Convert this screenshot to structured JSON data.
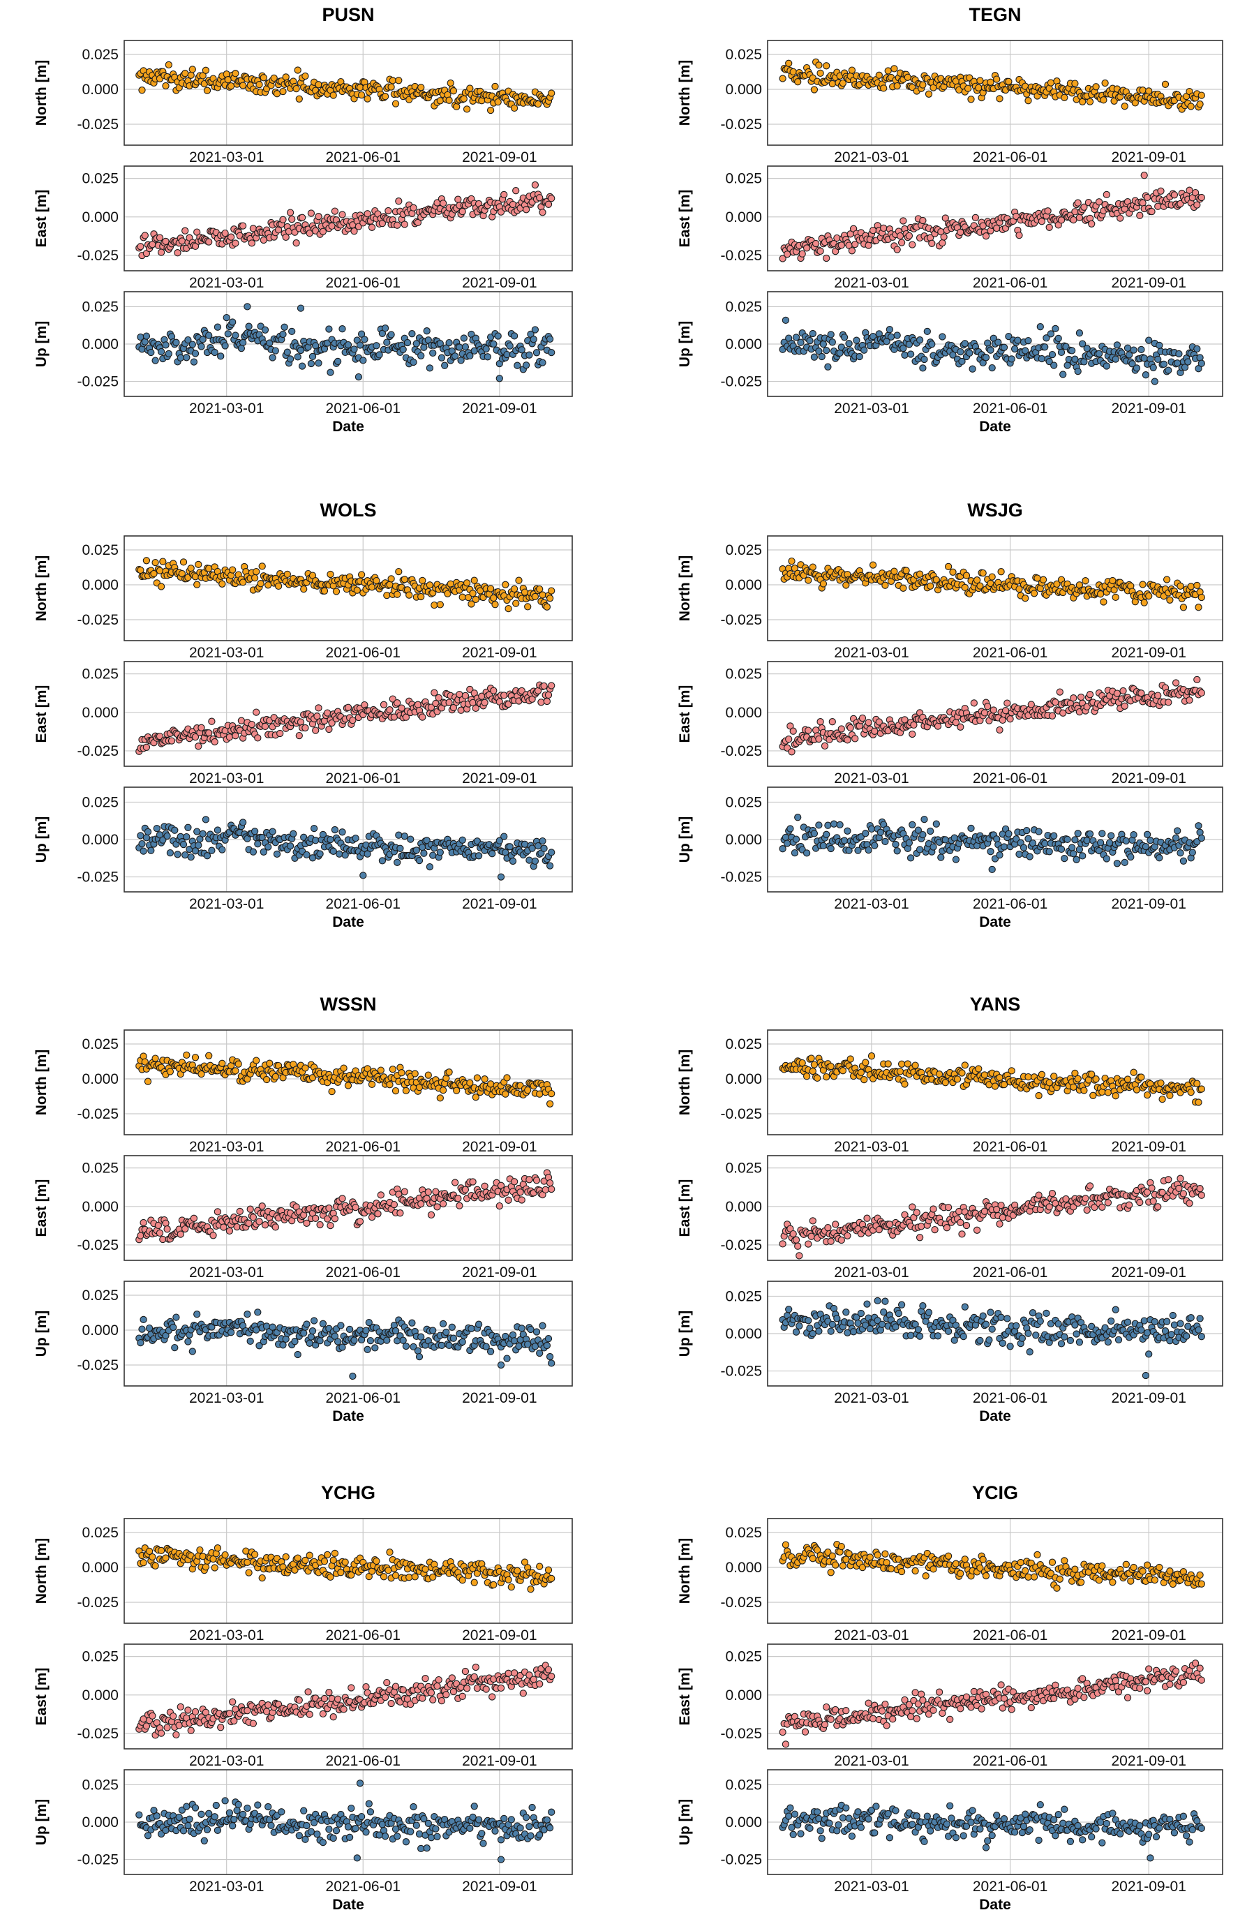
{
  "figure": {
    "x_axis": {
      "label": "Date",
      "tick_labels": [
        "2021-03-01",
        "2021-06-01",
        "2021-09-01"
      ],
      "tick_dates": [
        "2021-03-01",
        "2021-06-01",
        "2021-09-01"
      ],
      "range": [
        "2020-12-22",
        "2021-10-20"
      ]
    },
    "y_tick_labels": [
      "0.025",
      "0.000",
      "-0.025"
    ],
    "colors": {
      "North": "#f5a21b",
      "East": "#f08a8a",
      "Up": "#4d7fa8"
    }
  },
  "chart_data": [
    {
      "type": "scatter",
      "title": "PUSN",
      "xlabel": "Date",
      "series": [
        {
          "name": "North",
          "ylabel": "North [m]",
          "ylim": [
            -0.04,
            0.035
          ],
          "start": 0.009,
          "end": -0.008,
          "noise": 0.005,
          "extremes": []
        },
        {
          "name": "East",
          "ylabel": "East [m]",
          "ylim": [
            -0.035,
            0.033
          ],
          "start": -0.02,
          "end": 0.013,
          "noise": 0.005,
          "extremes": []
        },
        {
          "name": "Up",
          "ylabel": "Up [m]",
          "ylim": [
            -0.035,
            0.035
          ],
          "start": 0.0,
          "end": -0.004,
          "noise": 0.008,
          "extremes": [
            [
              "2021-03-15",
              0.025
            ],
            [
              "2021-04-20",
              0.024
            ],
            [
              "2021-05-29",
              -0.022
            ],
            [
              "2021-09-01",
              -0.023
            ]
          ]
        }
      ]
    },
    {
      "type": "scatter",
      "title": "TEGN",
      "xlabel": "Date",
      "series": [
        {
          "name": "North",
          "ylabel": "North [m]",
          "ylim": [
            -0.04,
            0.035
          ],
          "start": 0.011,
          "end": -0.008,
          "noise": 0.005,
          "extremes": []
        },
        {
          "name": "East",
          "ylabel": "East [m]",
          "ylim": [
            -0.035,
            0.033
          ],
          "start": -0.022,
          "end": 0.013,
          "noise": 0.005,
          "extremes": [
            [
              "2021-08-29",
              0.027
            ]
          ]
        },
        {
          "name": "Up",
          "ylabel": "Up [m]",
          "ylim": [
            -0.035,
            0.035
          ],
          "start": 0.0,
          "end": -0.01,
          "noise": 0.007,
          "extremes": [
            [
              "2021-09-05",
              -0.025
            ]
          ]
        }
      ]
    },
    {
      "type": "scatter",
      "title": "WOLS",
      "xlabel": "Date",
      "series": [
        {
          "name": "North",
          "ylabel": "North [m]",
          "ylim": [
            -0.04,
            0.035
          ],
          "start": 0.01,
          "end": -0.009,
          "noise": 0.005,
          "extremes": []
        },
        {
          "name": "East",
          "ylabel": "East [m]",
          "ylim": [
            -0.035,
            0.033
          ],
          "start": -0.02,
          "end": 0.014,
          "noise": 0.005,
          "extremes": []
        },
        {
          "name": "Up",
          "ylabel": "Up [m]",
          "ylim": [
            -0.035,
            0.035
          ],
          "start": 0.0,
          "end": -0.008,
          "noise": 0.007,
          "extremes": [
            [
              "2021-06-01",
              -0.024
            ],
            [
              "2021-09-02",
              -0.025
            ]
          ]
        }
      ]
    },
    {
      "type": "scatter",
      "title": "WSJG",
      "xlabel": "Date",
      "series": [
        {
          "name": "North",
          "ylabel": "North [m]",
          "ylim": [
            -0.04,
            0.035
          ],
          "start": 0.009,
          "end": -0.007,
          "noise": 0.005,
          "extremes": []
        },
        {
          "name": "East",
          "ylabel": "East [m]",
          "ylim": [
            -0.035,
            0.033
          ],
          "start": -0.018,
          "end": 0.015,
          "noise": 0.005,
          "extremes": []
        },
        {
          "name": "Up",
          "ylabel": "Up [m]",
          "ylim": [
            -0.035,
            0.035
          ],
          "start": 0.0,
          "end": -0.005,
          "noise": 0.007,
          "extremes": [
            [
              "2021-05-20",
              -0.02
            ]
          ]
        }
      ]
    },
    {
      "type": "scatter",
      "title": "WSSN",
      "xlabel": "Date",
      "series": [
        {
          "name": "North",
          "ylabel": "North [m]",
          "ylim": [
            -0.04,
            0.035
          ],
          "start": 0.01,
          "end": -0.008,
          "noise": 0.005,
          "extremes": []
        },
        {
          "name": "East",
          "ylabel": "East [m]",
          "ylim": [
            -0.035,
            0.033
          ],
          "start": -0.018,
          "end": 0.014,
          "noise": 0.005,
          "extremes": []
        },
        {
          "name": "Up",
          "ylabel": "Up [m]",
          "ylim": [
            -0.04,
            0.035
          ],
          "start": 0.0,
          "end": -0.008,
          "noise": 0.007,
          "extremes": [
            [
              "2021-05-25",
              -0.033
            ],
            [
              "2021-09-02",
              -0.025
            ]
          ]
        }
      ]
    },
    {
      "type": "scatter",
      "title": "YANS",
      "xlabel": "Date",
      "series": [
        {
          "name": "North",
          "ylabel": "North [m]",
          "ylim": [
            -0.04,
            0.035
          ],
          "start": 0.009,
          "end": -0.008,
          "noise": 0.005,
          "extremes": []
        },
        {
          "name": "East",
          "ylabel": "East [m]",
          "ylim": [
            -0.035,
            0.033
          ],
          "start": -0.02,
          "end": 0.012,
          "noise": 0.005,
          "extremes": []
        },
        {
          "name": "Up",
          "ylabel": "Up [m]",
          "ylim": [
            -0.035,
            0.035
          ],
          "start": 0.008,
          "end": 0.0,
          "noise": 0.007,
          "extremes": [
            [
              "2021-03-05",
              0.022
            ],
            [
              "2021-08-30",
              -0.028
            ]
          ]
        }
      ]
    },
    {
      "type": "scatter",
      "title": "YCHG",
      "xlabel": "Date",
      "series": [
        {
          "name": "North",
          "ylabel": "North [m]",
          "ylim": [
            -0.04,
            0.035
          ],
          "start": 0.008,
          "end": -0.007,
          "noise": 0.005,
          "extremes": []
        },
        {
          "name": "East",
          "ylabel": "East [m]",
          "ylim": [
            -0.035,
            0.033
          ],
          "start": -0.02,
          "end": 0.013,
          "noise": 0.005,
          "extremes": []
        },
        {
          "name": "Up",
          "ylabel": "Up [m]",
          "ylim": [
            -0.035,
            0.035
          ],
          "start": 0.0,
          "end": -0.003,
          "noise": 0.007,
          "extremes": [
            [
              "2021-05-30",
              0.026
            ],
            [
              "2021-05-28",
              -0.024
            ],
            [
              "2021-09-02",
              -0.025
            ]
          ]
        }
      ]
    },
    {
      "type": "scatter",
      "title": "YCIG",
      "xlabel": "Date",
      "series": [
        {
          "name": "North",
          "ylabel": "North [m]",
          "ylim": [
            -0.04,
            0.035
          ],
          "start": 0.008,
          "end": -0.008,
          "noise": 0.005,
          "extremes": []
        },
        {
          "name": "East",
          "ylabel": "East [m]",
          "ylim": [
            -0.035,
            0.033
          ],
          "start": -0.02,
          "end": 0.014,
          "noise": 0.005,
          "extremes": []
        },
        {
          "name": "Up",
          "ylabel": "Up [m]",
          "ylim": [
            -0.035,
            0.035
          ],
          "start": 0.0,
          "end": -0.004,
          "noise": 0.007,
          "extremes": [
            [
              "2021-09-02",
              -0.024
            ]
          ]
        }
      ]
    }
  ]
}
